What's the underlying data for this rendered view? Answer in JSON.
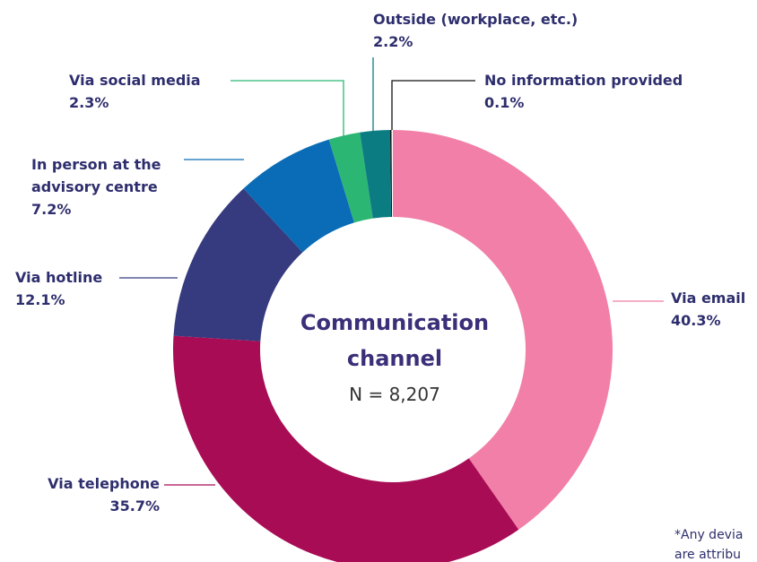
{
  "chart_data": {
    "type": "donut",
    "title": "Communication channel",
    "subtitle": "N = 8,207",
    "categories": [
      "Via email",
      "Via telephone",
      "Via hotline",
      "In person at the advisory centre",
      "Via social media",
      "Outside (workplace, etc.)",
      "No information provided"
    ],
    "values": [
      40.3,
      35.7,
      12.1,
      7.2,
      2.3,
      2.2,
      0.1
    ],
    "value_labels": [
      "40.3%",
      "35.7%",
      "12.1%",
      "7.2%",
      "2.3%",
      "2.2%",
      "0.1%"
    ],
    "colors": [
      "#f27fa8",
      "#a80c55",
      "#363a7e",
      "#0a6cb6",
      "#2bb673",
      "#0c7c83",
      "#111111"
    ],
    "footnote": [
      "*Any devia",
      "are attribu"
    ]
  }
}
